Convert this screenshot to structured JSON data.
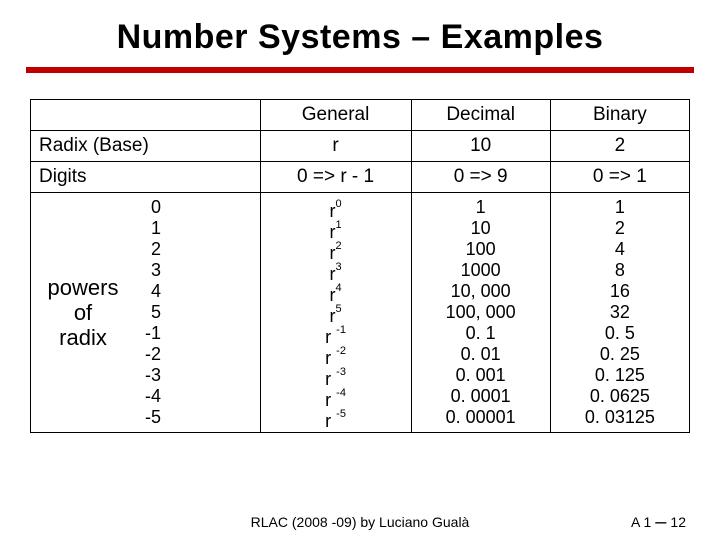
{
  "title": "Number Systems – Examples",
  "rule_color": "#c00000",
  "columns": {
    "blank": "",
    "c1": "General",
    "c2": "Decimal",
    "c3": "Binary"
  },
  "rows": {
    "radix": {
      "label": "Radix (Base)",
      "general": "r",
      "decimal": "10",
      "binary": "2"
    },
    "digits": {
      "label": "Digits",
      "general": "0 => r - 1",
      "decimal": "0 => 9",
      "binary": "0 => 1"
    }
  },
  "powers": {
    "label_line1": "powers",
    "label_line2": "of",
    "label_line3": "radix",
    "indices": [
      "0",
      "1",
      "2",
      "3",
      "4",
      "5",
      "-1",
      "-2",
      "-3",
      "-4",
      "-5"
    ],
    "general_exponents": [
      "0",
      "1",
      "2",
      "3",
      "4",
      "5",
      "-1",
      "-2",
      "-3",
      "-4",
      "-5"
    ],
    "decimal": [
      "1",
      "10",
      "100",
      "1000",
      "10, 000",
      "100, 000",
      "0. 1",
      "0. 01",
      "0. 001",
      "0. 0001",
      "0. 00001"
    ],
    "binary": [
      "1",
      "2",
      "4",
      "8",
      "16",
      "32",
      "0. 5",
      "0. 25",
      "0. 125",
      "0. 0625",
      "0. 03125"
    ]
  },
  "footer": {
    "center": "RLAC (2008 -09) by Luciano Gualà",
    "right_prefix": "A 1",
    "right_num": "12"
  }
}
